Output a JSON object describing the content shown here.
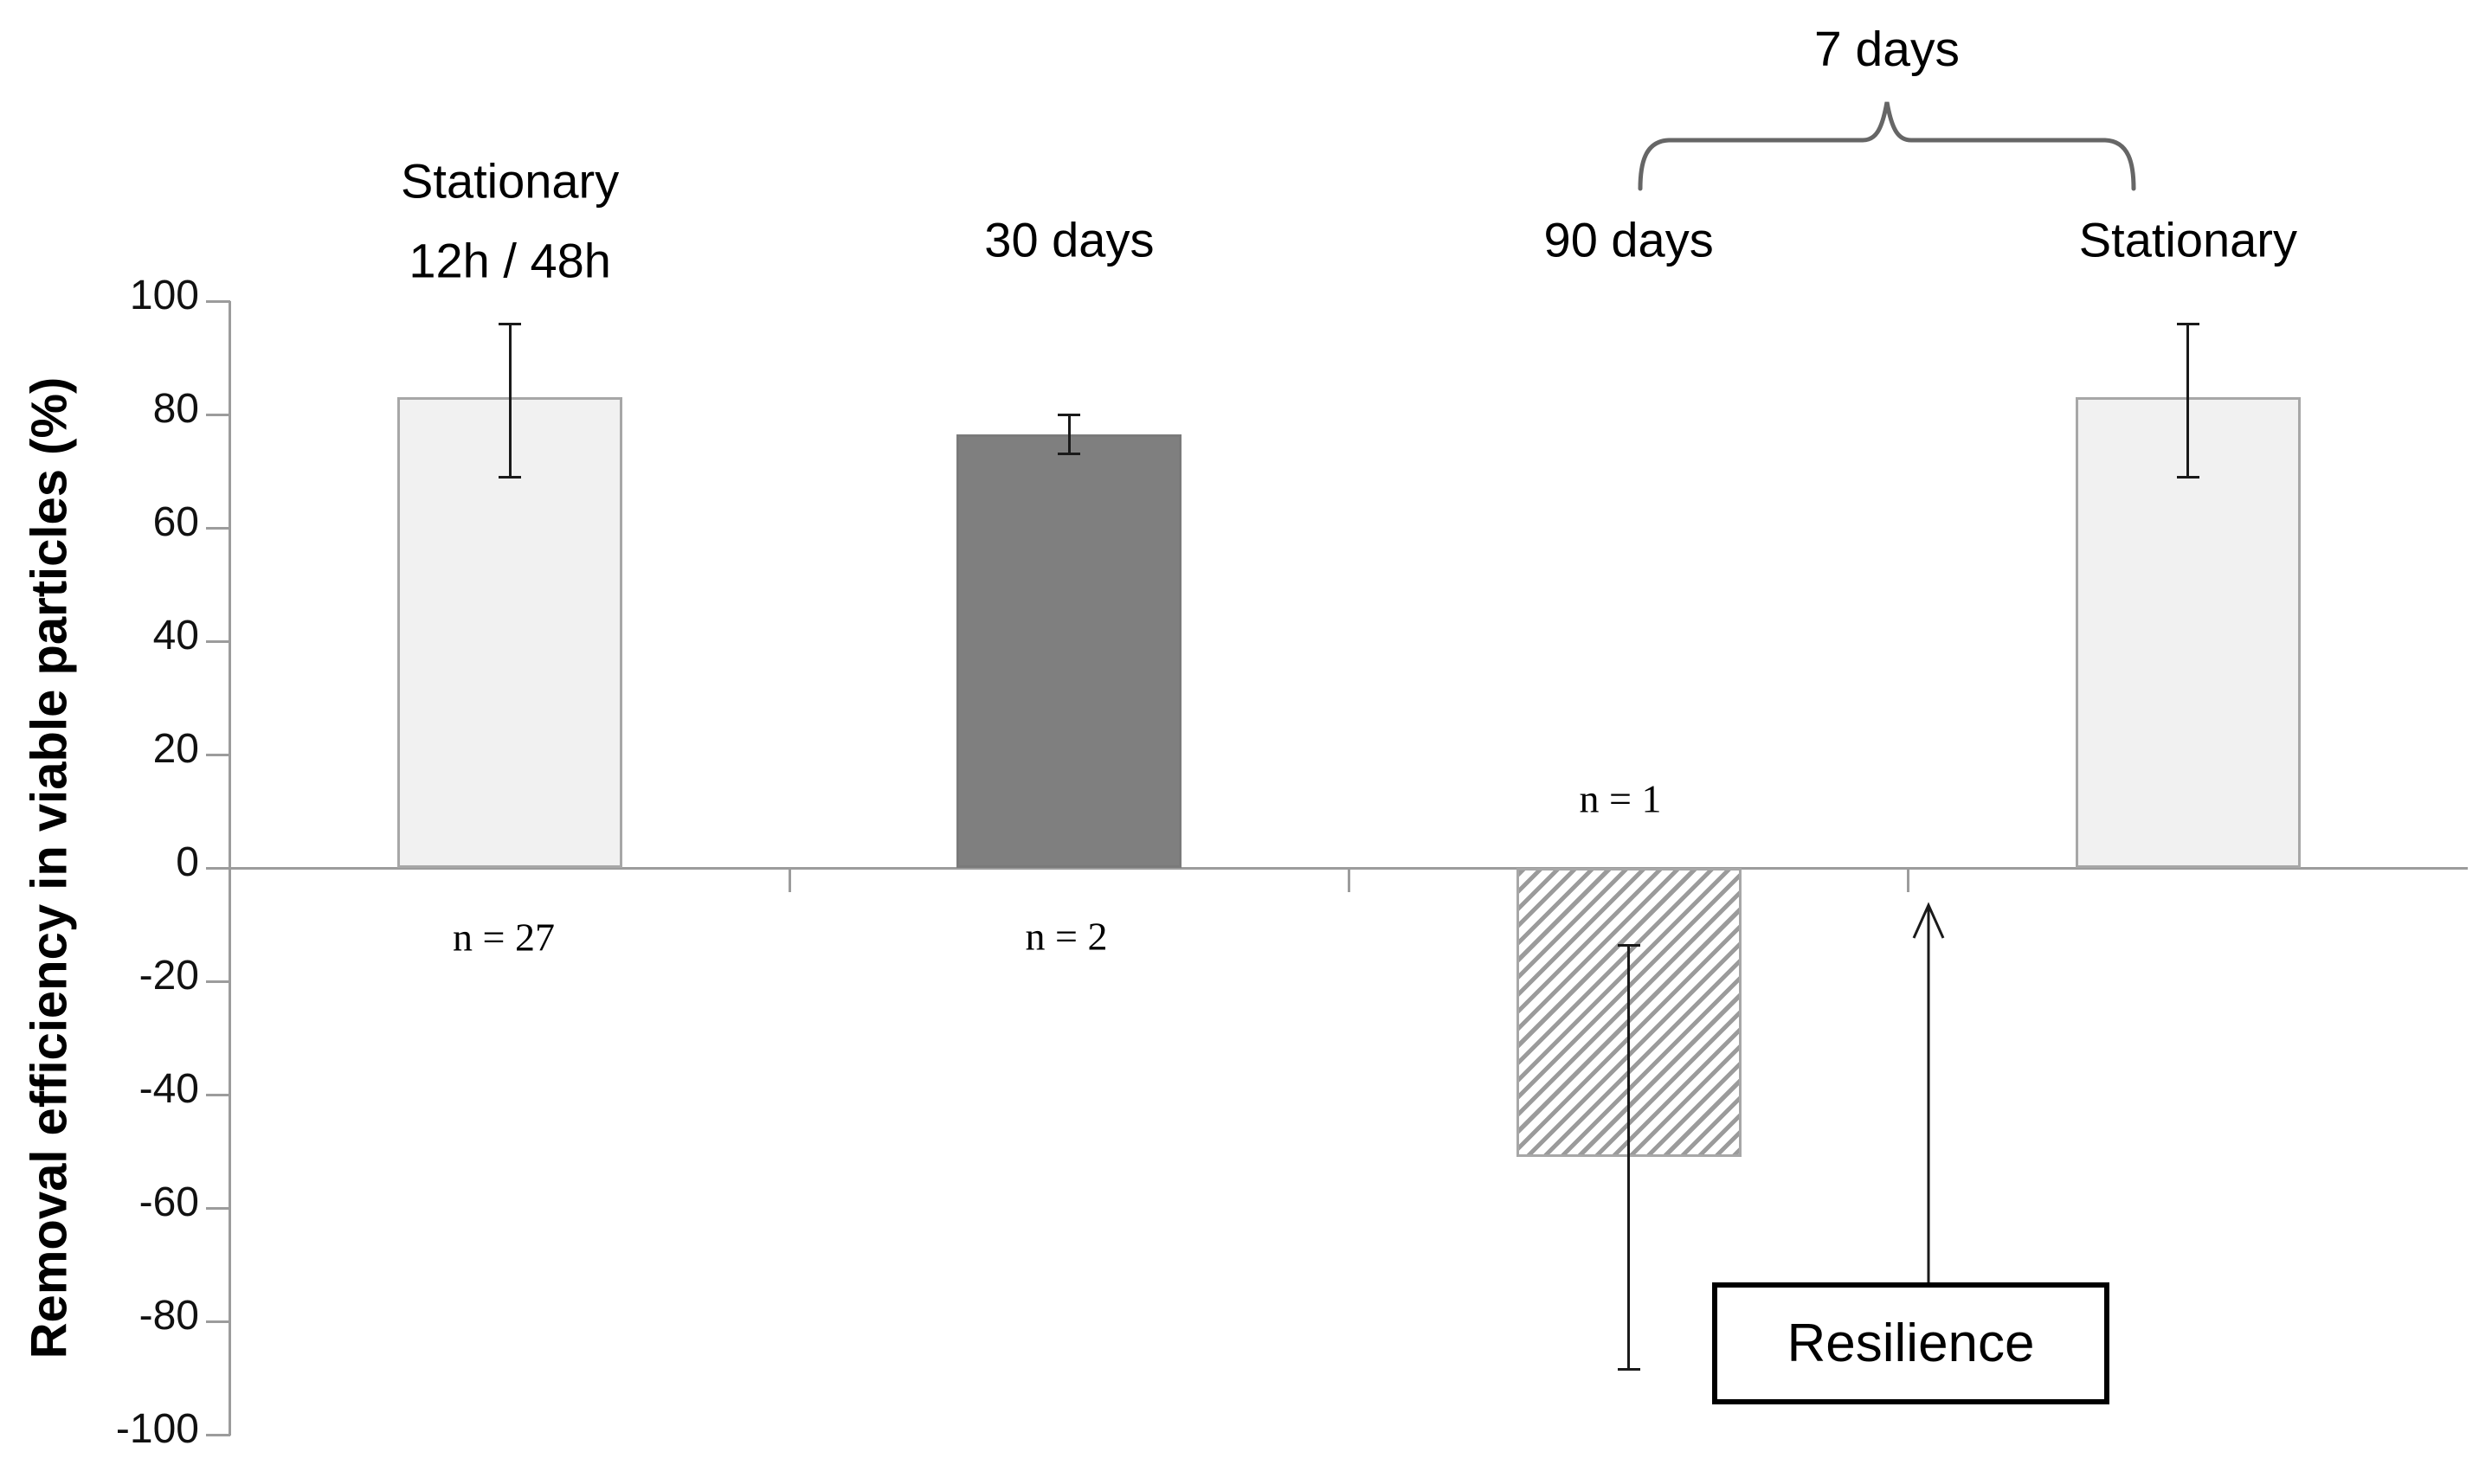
{
  "chart_data": {
    "type": "bar",
    "title": "",
    "ylabel": "Removal efficiency in viable particles (%)",
    "ylim": [
      -100,
      100
    ],
    "ytick_interval": 20,
    "yticks": [
      100,
      80,
      60,
      40,
      20,
      0,
      -20,
      -40,
      -60,
      -80,
      -100
    ],
    "categories": [
      "Stationary 12h / 48h",
      "30 days",
      "90 days",
      "Stationary"
    ],
    "category_label_lines": [
      [
        "Stationary",
        "12h / 48h"
      ],
      [
        "30 days"
      ],
      [
        "90 days"
      ],
      [
        "Stationary"
      ]
    ],
    "series": [
      {
        "name": "Removal efficiency in viable particles (%)",
        "values": [
          83,
          76.5,
          -51,
          83
        ],
        "error_low": [
          69,
          73,
          -88.5,
          69
        ],
        "error_high": [
          96,
          80,
          -13.6,
          96
        ]
      }
    ],
    "bar_styles": [
      "light",
      "dark",
      "hatch",
      "light"
    ],
    "grid": false,
    "legend": false,
    "annotations": {
      "n_labels": [
        "n = 27",
        "n = 2",
        "n = 1",
        ""
      ],
      "brace_label": "7 days",
      "resilience_label": "Resilience"
    }
  },
  "colors": {
    "bar_light_fill": "#f1f1f1",
    "bar_dark_fill": "#7f7f7f",
    "bar_border": "#a7a7a7",
    "hatch_line": "#9b9b9b",
    "axis": "#9c9c9c",
    "error_bar": "#1a1a1a",
    "brace": "#666666",
    "text": "#000000"
  }
}
